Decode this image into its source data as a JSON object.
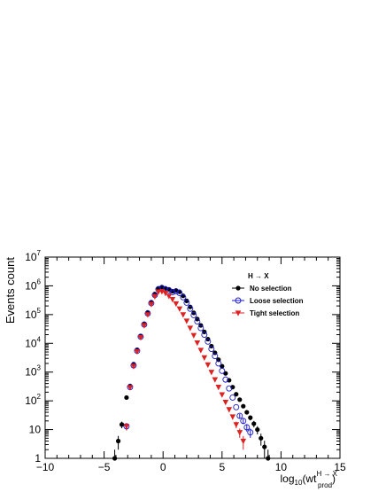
{
  "chart_data": {
    "type": "scatter",
    "xlabel": {
      "prefix": "log",
      "sub": "10",
      "open": "(wt",
      "sup": "H → X",
      "sub2": "prod",
      "close": ")"
    },
    "ylabel": "Events count",
    "xlim": [
      -10,
      15
    ],
    "ylim_log10": [
      0,
      7
    ],
    "y_scale": "log",
    "x_ticks": [
      -10,
      -5,
      0,
      5,
      10,
      15
    ],
    "y_ticks": [
      {
        "base": "1",
        "exp": ""
      },
      {
        "base": "10",
        "exp": ""
      },
      {
        "base": "10",
        "exp": "2"
      },
      {
        "base": "10",
        "exp": "3"
      },
      {
        "base": "10",
        "exp": "4"
      },
      {
        "base": "10",
        "exp": "5"
      },
      {
        "base": "10",
        "exp": "6"
      },
      {
        "base": "10",
        "exp": "7"
      }
    ],
    "legend": {
      "header": "H → X",
      "placement": "top-right"
    },
    "series": [
      {
        "name": "No selection",
        "marker": "filled-circle",
        "color": "#000000",
        "points": [
          [
            -4.1,
            1
          ],
          [
            -3.8,
            4
          ],
          [
            -3.5,
            15
          ],
          [
            -3.1,
            130
          ],
          [
            -2.8,
            330
          ],
          [
            -2.5,
            1900
          ],
          [
            -2.2,
            6000
          ],
          [
            -1.9,
            18000
          ],
          [
            -1.6,
            48000
          ],
          [
            -1.3,
            120000
          ],
          [
            -1.0,
            270000
          ],
          [
            -0.7,
            520000
          ],
          [
            -0.4,
            820000
          ],
          [
            -0.1,
            900000
          ],
          [
            0.2,
            820000
          ],
          [
            0.5,
            760000
          ],
          [
            0.8,
            650000
          ],
          [
            1.1,
            690000
          ],
          [
            1.4,
            620000
          ],
          [
            1.7,
            450000
          ],
          [
            2.0,
            300000
          ],
          [
            2.3,
            185000
          ],
          [
            2.6,
            115000
          ],
          [
            2.9,
            70000
          ],
          [
            3.2,
            42000
          ],
          [
            3.5,
            25000
          ],
          [
            3.8,
            14000
          ],
          [
            4.1,
            8000
          ],
          [
            4.4,
            4700
          ],
          [
            4.7,
            2700
          ],
          [
            5.0,
            1600
          ],
          [
            5.3,
            900
          ],
          [
            5.6,
            520
          ],
          [
            5.9,
            300
          ],
          [
            6.2,
            170
          ],
          [
            6.5,
            110
          ],
          [
            6.8,
            65
          ],
          [
            7.1,
            40
          ],
          [
            7.4,
            26
          ],
          [
            7.7,
            16
          ],
          [
            8.0,
            10
          ],
          [
            8.3,
            5
          ],
          [
            8.6,
            2.5
          ],
          [
            8.9,
            1
          ]
        ]
      },
      {
        "name": "Loose selection",
        "marker": "open-circle",
        "color": "#1a1acc",
        "points": [
          [
            -3.1,
            13
          ],
          [
            -2.8,
            300
          ],
          [
            -2.5,
            1700
          ],
          [
            -2.2,
            5500
          ],
          [
            -1.9,
            17000
          ],
          [
            -1.6,
            45000
          ],
          [
            -1.3,
            110000
          ],
          [
            -1.0,
            250000
          ],
          [
            -0.7,
            480000
          ],
          [
            -0.4,
            760000
          ],
          [
            -0.1,
            840000
          ],
          [
            0.2,
            760000
          ],
          [
            0.5,
            700000
          ],
          [
            0.8,
            600000
          ],
          [
            1.1,
            640000
          ],
          [
            1.4,
            560000
          ],
          [
            1.7,
            400000
          ],
          [
            2.0,
            260000
          ],
          [
            2.3,
            160000
          ],
          [
            2.6,
            96000
          ],
          [
            2.9,
            58000
          ],
          [
            3.2,
            34000
          ],
          [
            3.5,
            20000
          ],
          [
            3.8,
            11500
          ],
          [
            4.1,
            6400
          ],
          [
            4.4,
            3600
          ],
          [
            4.7,
            2000
          ],
          [
            5.0,
            1100
          ],
          [
            5.3,
            550
          ],
          [
            5.6,
            270
          ],
          [
            5.9,
            130
          ],
          [
            6.2,
            60
          ],
          [
            6.5,
            30
          ],
          [
            6.8,
            20
          ],
          [
            7.1,
            12
          ],
          [
            7.4,
            8
          ]
        ]
      },
      {
        "name": "Tight selection",
        "marker": "filled-triangle-down",
        "color": "#dd2222",
        "points": [
          [
            -3.1,
            13
          ],
          [
            -2.8,
            290
          ],
          [
            -2.5,
            1600
          ],
          [
            -2.2,
            5200
          ],
          [
            -1.9,
            16000
          ],
          [
            -1.6,
            42000
          ],
          [
            -1.3,
            100000
          ],
          [
            -1.0,
            230000
          ],
          [
            -0.7,
            430000
          ],
          [
            -0.4,
            620000
          ],
          [
            -0.1,
            640000
          ],
          [
            0.2,
            560000
          ],
          [
            0.5,
            440000
          ],
          [
            0.8,
            340000
          ],
          [
            1.1,
            240000
          ],
          [
            1.4,
            160000
          ],
          [
            1.7,
            100000
          ],
          [
            2.0,
            60000
          ],
          [
            2.3,
            34000
          ],
          [
            2.6,
            19000
          ],
          [
            2.9,
            10500
          ],
          [
            3.2,
            5800
          ],
          [
            3.5,
            3200
          ],
          [
            3.8,
            1800
          ],
          [
            4.1,
            1000
          ],
          [
            4.4,
            550
          ],
          [
            4.7,
            300
          ],
          [
            5.0,
            165
          ],
          [
            5.3,
            90
          ],
          [
            5.6,
            50
          ],
          [
            5.9,
            28
          ],
          [
            6.2,
            15
          ],
          [
            6.5,
            8
          ],
          [
            6.8,
            4
          ]
        ]
      }
    ]
  }
}
